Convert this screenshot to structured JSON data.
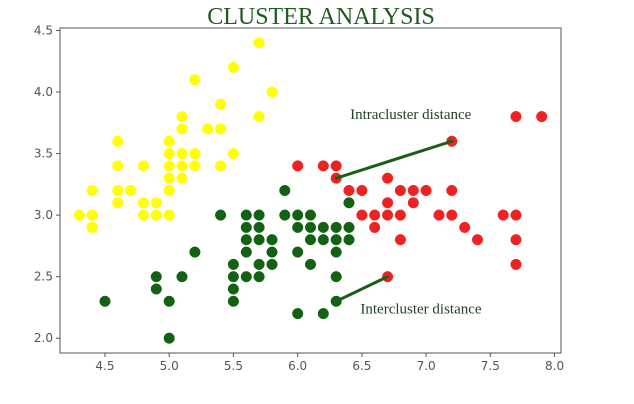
{
  "chart_data": {
    "type": "scatter",
    "title": "CLUSTER  ANALYSIS",
    "xlabel": "",
    "ylabel": "",
    "xlim": [
      4.15,
      8.05
    ],
    "ylim": [
      1.88,
      4.52
    ],
    "xticks": [
      "4.5",
      "5.0",
      "5.5",
      "6.0",
      "6.5",
      "7.0",
      "7.5",
      "8.0"
    ],
    "yticks": [
      "2.0",
      "2.5",
      "3.0",
      "3.5",
      "4.0",
      "4.5"
    ],
    "grid": false,
    "series": [
      {
        "color": "#ffff00",
        "points": [
          [
            4.3,
            3.0
          ],
          [
            4.4,
            3.0
          ],
          [
            4.4,
            2.9
          ],
          [
            4.4,
            3.2
          ],
          [
            4.6,
            3.6
          ],
          [
            4.6,
            3.4
          ],
          [
            4.6,
            3.2
          ],
          [
            4.6,
            3.1
          ],
          [
            4.7,
            3.2
          ],
          [
            4.8,
            3.4
          ],
          [
            4.8,
            3.1
          ],
          [
            4.8,
            3.0
          ],
          [
            4.9,
            3.1
          ],
          [
            4.9,
            3.0
          ],
          [
            5.0,
            3.6
          ],
          [
            5.0,
            3.5
          ],
          [
            5.0,
            3.4
          ],
          [
            5.0,
            3.3
          ],
          [
            5.0,
            3.2
          ],
          [
            5.0,
            3.0
          ],
          [
            5.1,
            3.8
          ],
          [
            5.1,
            3.7
          ],
          [
            5.1,
            3.5
          ],
          [
            5.1,
            3.4
          ],
          [
            5.1,
            3.3
          ],
          [
            5.2,
            4.1
          ],
          [
            5.2,
            3.5
          ],
          [
            5.2,
            3.4
          ],
          [
            5.3,
            3.7
          ],
          [
            5.4,
            3.9
          ],
          [
            5.4,
            3.7
          ],
          [
            5.4,
            3.4
          ],
          [
            5.5,
            4.2
          ],
          [
            5.5,
            3.5
          ],
          [
            5.7,
            4.4
          ],
          [
            5.7,
            3.8
          ],
          [
            5.8,
            4.0
          ]
        ]
      },
      {
        "color": "#136113",
        "points": [
          [
            4.5,
            2.3
          ],
          [
            4.9,
            2.5
          ],
          [
            4.9,
            2.4
          ],
          [
            5.0,
            2.3
          ],
          [
            5.0,
            2.0
          ],
          [
            5.1,
            2.5
          ],
          [
            5.2,
            2.7
          ],
          [
            5.4,
            3.0
          ],
          [
            5.5,
            2.6
          ],
          [
            5.5,
            2.5
          ],
          [
            5.5,
            2.4
          ],
          [
            5.5,
            2.3
          ],
          [
            5.6,
            3.0
          ],
          [
            5.6,
            2.9
          ],
          [
            5.6,
            2.8
          ],
          [
            5.6,
            2.7
          ],
          [
            5.6,
            2.5
          ],
          [
            5.7,
            3.0
          ],
          [
            5.7,
            2.9
          ],
          [
            5.7,
            2.8
          ],
          [
            5.7,
            2.6
          ],
          [
            5.7,
            2.5
          ],
          [
            5.8,
            2.8
          ],
          [
            5.8,
            2.7
          ],
          [
            5.8,
            2.6
          ],
          [
            5.9,
            3.2
          ],
          [
            5.9,
            3.0
          ],
          [
            6.0,
            3.0
          ],
          [
            6.0,
            2.9
          ],
          [
            6.0,
            2.7
          ],
          [
            6.0,
            2.2
          ],
          [
            6.1,
            3.0
          ],
          [
            6.1,
            2.9
          ],
          [
            6.1,
            2.8
          ],
          [
            6.1,
            2.6
          ],
          [
            6.2,
            2.9
          ],
          [
            6.2,
            2.8
          ],
          [
            6.2,
            2.2
          ],
          [
            6.3,
            2.9
          ],
          [
            6.3,
            2.8
          ],
          [
            6.3,
            2.7
          ],
          [
            6.3,
            2.5
          ],
          [
            6.3,
            2.3
          ],
          [
            6.4,
            3.1
          ],
          [
            6.4,
            2.9
          ],
          [
            6.4,
            2.8
          ]
        ]
      },
      {
        "color": "#ee2222",
        "points": [
          [
            6.0,
            3.4
          ],
          [
            6.2,
            3.4
          ],
          [
            6.3,
            3.4
          ],
          [
            6.3,
            3.3
          ],
          [
            6.4,
            3.2
          ],
          [
            6.5,
            3.2
          ],
          [
            6.5,
            3.0
          ],
          [
            6.6,
            3.0
          ],
          [
            6.6,
            2.9
          ],
          [
            6.7,
            3.3
          ],
          [
            6.7,
            3.1
          ],
          [
            6.7,
            3.0
          ],
          [
            6.7,
            2.5
          ],
          [
            6.8,
            3.2
          ],
          [
            6.8,
            3.0
          ],
          [
            6.8,
            2.8
          ],
          [
            6.9,
            3.2
          ],
          [
            6.9,
            3.1
          ],
          [
            7.0,
            3.2
          ],
          [
            7.1,
            3.0
          ],
          [
            7.2,
            3.6
          ],
          [
            7.2,
            3.2
          ],
          [
            7.2,
            3.0
          ],
          [
            7.3,
            2.9
          ],
          [
            7.4,
            2.8
          ],
          [
            7.6,
            3.0
          ],
          [
            7.7,
            3.8
          ],
          [
            7.7,
            3.0
          ],
          [
            7.7,
            2.8
          ],
          [
            7.7,
            2.6
          ],
          [
            7.9,
            3.8
          ]
        ]
      }
    ],
    "annotations": [
      {
        "text": "Intracluster  distance",
        "from": [
          6.3,
          3.3
        ],
        "to": [
          7.2,
          3.6
        ],
        "label_at": [
          6.88,
          3.78
        ]
      },
      {
        "text": "Intercluster distance",
        "from": [
          6.3,
          2.3
        ],
        "to": [
          6.7,
          2.5
        ],
        "label_at": [
          6.96,
          2.2
        ]
      }
    ],
    "line_color": "#1a5e1a"
  }
}
